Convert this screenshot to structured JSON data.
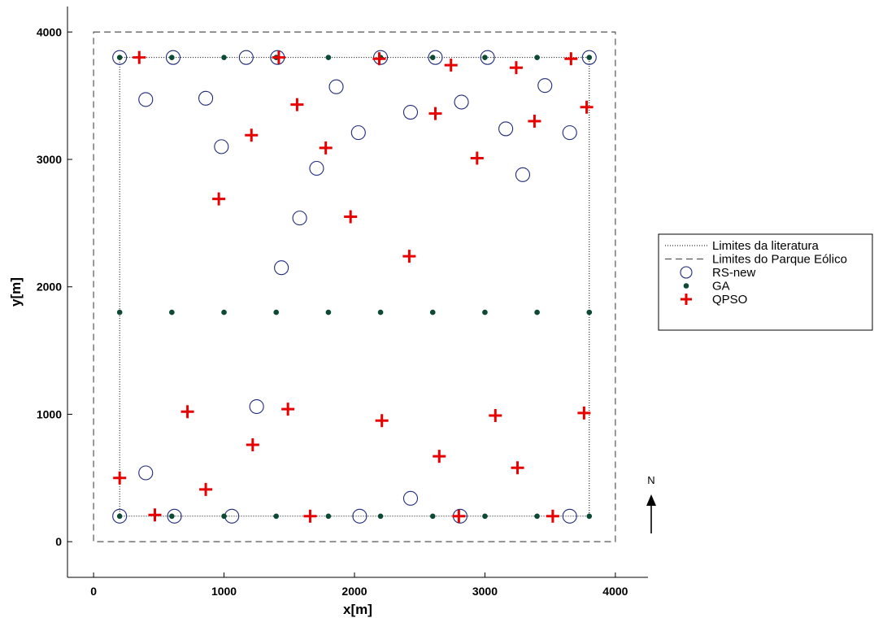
{
  "chart_data": {
    "type": "scatter",
    "xlabel": "x[m]",
    "ylabel": "y[m]",
    "xlim": [
      -200,
      4250
    ],
    "ylim": [
      -280,
      4200
    ],
    "xticks": [
      0,
      1000,
      2000,
      3000,
      4000
    ],
    "yticks": [
      0,
      1000,
      2000,
      3000,
      4000
    ],
    "grid": false,
    "legend_placement": "right",
    "north_arrow_label": "N",
    "colors": {
      "RS-new": "#1f2a7a",
      "GA": "#0d4a34",
      "QPSO": "#e80000",
      "boundary": "#000000",
      "park": "#555555"
    },
    "boundaries": [
      {
        "name": "Limites da literatura",
        "style": "dotted",
        "rect": {
          "x0": 200,
          "y0": 200,
          "x1": 3800,
          "y1": 3800
        }
      },
      {
        "name": "Limites do Parque Eólico",
        "style": "dashed",
        "rect": {
          "x0": 0,
          "y0": 0,
          "x1": 4000,
          "y1": 4000
        }
      }
    ],
    "series": [
      {
        "name": "RS-new",
        "marker": "circle",
        "points": [
          [
            200,
            3800
          ],
          [
            610,
            3800
          ],
          [
            1170,
            3800
          ],
          [
            1410,
            3800
          ],
          [
            2200,
            3800
          ],
          [
            2620,
            3800
          ],
          [
            3020,
            3800
          ],
          [
            3800,
            3800
          ],
          [
            400,
            3470
          ],
          [
            860,
            3480
          ],
          [
            1860,
            3570
          ],
          [
            2430,
            3370
          ],
          [
            2820,
            3450
          ],
          [
            3160,
            3240
          ],
          [
            3460,
            3580
          ],
          [
            3650,
            3210
          ],
          [
            980,
            3100
          ],
          [
            2030,
            3210
          ],
          [
            1710,
            2930
          ],
          [
            3290,
            2880
          ],
          [
            1580,
            2540
          ],
          [
            1440,
            2150
          ],
          [
            1250,
            1060
          ],
          [
            400,
            540
          ],
          [
            2430,
            340
          ],
          [
            200,
            200
          ],
          [
            620,
            200
          ],
          [
            1060,
            200
          ],
          [
            2040,
            200
          ],
          [
            2810,
            200
          ],
          [
            3650,
            200
          ]
        ]
      },
      {
        "name": "GA",
        "marker": "dot",
        "points": [
          [
            200,
            3800
          ],
          [
            600,
            3800
          ],
          [
            1000,
            3800
          ],
          [
            1400,
            3800
          ],
          [
            1800,
            3800
          ],
          [
            2200,
            3800
          ],
          [
            2600,
            3800
          ],
          [
            3000,
            3800
          ],
          [
            3400,
            3800
          ],
          [
            3800,
            3800
          ],
          [
            200,
            1800
          ],
          [
            600,
            1800
          ],
          [
            1000,
            1800
          ],
          [
            1400,
            1800
          ],
          [
            1800,
            1800
          ],
          [
            2200,
            1800
          ],
          [
            2600,
            1800
          ],
          [
            3000,
            1800
          ],
          [
            3400,
            1800
          ],
          [
            3800,
            1800
          ],
          [
            200,
            200
          ],
          [
            600,
            200
          ],
          [
            1000,
            200
          ],
          [
            1400,
            200
          ],
          [
            1800,
            200
          ],
          [
            2200,
            200
          ],
          [
            2600,
            200
          ],
          [
            3000,
            200
          ],
          [
            3400,
            200
          ],
          [
            3800,
            200
          ]
        ]
      },
      {
        "name": "QPSO",
        "marker": "plus",
        "points": [
          [
            350,
            3800
          ],
          [
            1420,
            3800
          ],
          [
            2190,
            3790
          ],
          [
            2740,
            3740
          ],
          [
            3240,
            3720
          ],
          [
            3660,
            3790
          ],
          [
            3780,
            3410
          ],
          [
            1560,
            3430
          ],
          [
            2620,
            3360
          ],
          [
            3380,
            3300
          ],
          [
            1210,
            3190
          ],
          [
            1780,
            3090
          ],
          [
            2940,
            3010
          ],
          [
            960,
            2690
          ],
          [
            1970,
            2550
          ],
          [
            2420,
            2240
          ],
          [
            720,
            1020
          ],
          [
            1490,
            1040
          ],
          [
            3760,
            1010
          ],
          [
            3080,
            990
          ],
          [
            2210,
            950
          ],
          [
            1220,
            760
          ],
          [
            2650,
            670
          ],
          [
            3250,
            580
          ],
          [
            200,
            500
          ],
          [
            860,
            410
          ],
          [
            470,
            210
          ],
          [
            1660,
            200
          ],
          [
            2800,
            200
          ],
          [
            3520,
            200
          ]
        ]
      }
    ]
  }
}
